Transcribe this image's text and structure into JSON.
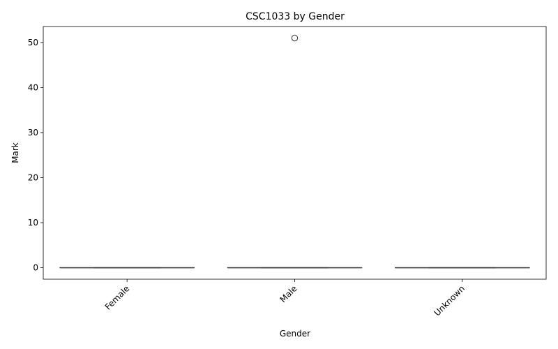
{
  "chart_data": {
    "type": "box",
    "title": "CSC1033 by Gender",
    "xlabel": "Gender",
    "ylabel": "Mark",
    "categories": [
      "Female",
      "Male",
      "Unknown"
    ],
    "boxes": [
      {
        "category": "Female",
        "min": 0,
        "q1": 0,
        "median": 0,
        "q3": 0,
        "max": 0,
        "outliers": []
      },
      {
        "category": "Male",
        "min": 0,
        "q1": 0,
        "median": 0,
        "q3": 0,
        "max": 0,
        "outliers": [
          51
        ]
      },
      {
        "category": "Unknown",
        "min": 0,
        "q1": 0,
        "median": 0,
        "q3": 0,
        "max": 0,
        "outliers": []
      }
    ],
    "ylim": [
      -2.55,
      53.55
    ],
    "yticks": [
      0,
      10,
      20,
      30,
      40,
      50
    ],
    "xtick_rotation": "45 degrees",
    "grid": false,
    "legend": "none",
    "colors": {
      "box_line": "#3f3f3f",
      "axis": "#000000",
      "outlier_edge": "#3f3f3f"
    }
  }
}
